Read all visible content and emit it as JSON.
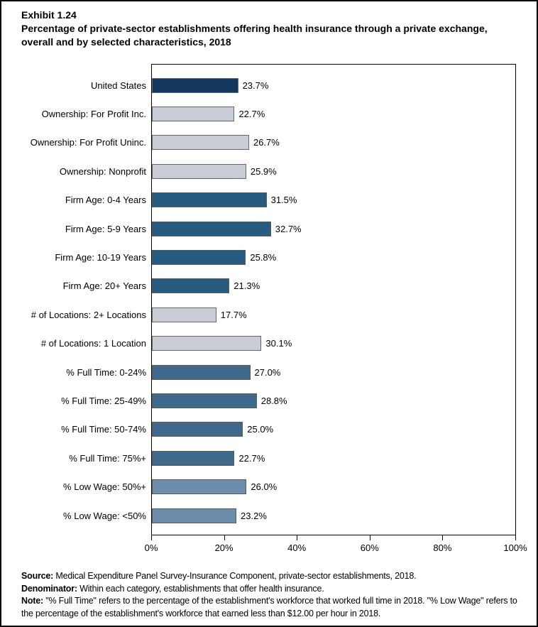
{
  "page": {
    "exhibit_label": "Exhibit 1.24",
    "title": "Percentage of private-sector establishments offering health insurance through a private exchange, overall and by selected characteristics, 2018"
  },
  "chart_data": {
    "type": "bar",
    "orientation": "horizontal",
    "title": "Percentage of private-sector establishments offering health insurance through a private exchange, overall and by selected characteristics, 2018",
    "xlabel": "",
    "ylabel": "",
    "xlim": [
      0,
      100
    ],
    "grid": false,
    "x_ticks": [
      {
        "value": 0,
        "label": "0%"
      },
      {
        "value": 20,
        "label": "20%"
      },
      {
        "value": 40,
        "label": "40%"
      },
      {
        "value": 60,
        "label": "60%"
      },
      {
        "value": 80,
        "label": "80%"
      },
      {
        "value": 100,
        "label": "100%"
      }
    ],
    "bars": [
      {
        "label": "United States",
        "value": 23.7,
        "display": "23.7%",
        "color": "#13375e",
        "border": "#666a70"
      },
      {
        "label": "Ownership: For Profit Inc.",
        "value": 22.7,
        "display": "22.7%",
        "color": "#c8ccd4",
        "border": "#63676d"
      },
      {
        "label": "Ownership: For Profit Uninc.",
        "value": 26.7,
        "display": "26.7%",
        "color": "#c8ccd4",
        "border": "#63676d"
      },
      {
        "label": "Ownership: Nonprofit",
        "value": 25.9,
        "display": "25.9%",
        "color": "#c8ccd4",
        "border": "#63676d"
      },
      {
        "label": "Firm Age: 0-4 Years",
        "value": 31.5,
        "display": "31.5%",
        "color": "#275b80",
        "border": "#565b60"
      },
      {
        "label": "Firm Age: 5-9 Years",
        "value": 32.7,
        "display": "32.7%",
        "color": "#275b80",
        "border": "#565b60"
      },
      {
        "label": "Firm Age: 10-19 Years",
        "value": 25.8,
        "display": "25.8%",
        "color": "#275b80",
        "border": "#565b60"
      },
      {
        "label": "Firm Age: 20+ Years",
        "value": 21.3,
        "display": "21.3%",
        "color": "#275b80",
        "border": "#565b60"
      },
      {
        "label": "# of Locations: 2+ Locations",
        "value": 17.7,
        "display": "17.7%",
        "color": "#c8ccd4",
        "border": "#63676d"
      },
      {
        "label": "# of Locations: 1 Location",
        "value": 30.1,
        "display": "30.1%",
        "color": "#c8ccd4",
        "border": "#63676d"
      },
      {
        "label": "% Full Time: 0-24%",
        "value": 27.0,
        "display": "27.0%",
        "color": "#3f6a8c",
        "border": "#565b60"
      },
      {
        "label": "% Full Time: 25-49%",
        "value": 28.8,
        "display": "28.8%",
        "color": "#3f6a8c",
        "border": "#565b60"
      },
      {
        "label": "% Full Time: 50-74%",
        "value": 25.0,
        "display": "25.0%",
        "color": "#3f6a8c",
        "border": "#565b60"
      },
      {
        "label": "% Full Time: 75%+",
        "value": 22.7,
        "display": "22.7%",
        "color": "#3f6a8c",
        "border": "#565b60"
      },
      {
        "label": "% Low Wage: 50%+",
        "value": 26.0,
        "display": "26.0%",
        "color": "#6c8dab",
        "border": "#565b60"
      },
      {
        "label": "% Low Wage: <50%",
        "value": 23.2,
        "display": "23.2%",
        "color": "#6c8dab",
        "border": "#565b60"
      }
    ]
  },
  "footer": {
    "source_label": "Source:",
    "source_text": " Medical Expenditure Panel Survey-Insurance Component, private-sector establishments, 2018.",
    "denominator_label": "Denominator:",
    "denominator_text": " Within each category, establishments that offer health insurance.",
    "note_label": "Note:",
    "note_text": " \"% Full Time\" refers to the percentage of the establishment's workforce that worked full time in 2018. \"% Low Wage\" refers to the percentage of the establishment's workforce that earned less than $12.00 per hour in 2018."
  }
}
